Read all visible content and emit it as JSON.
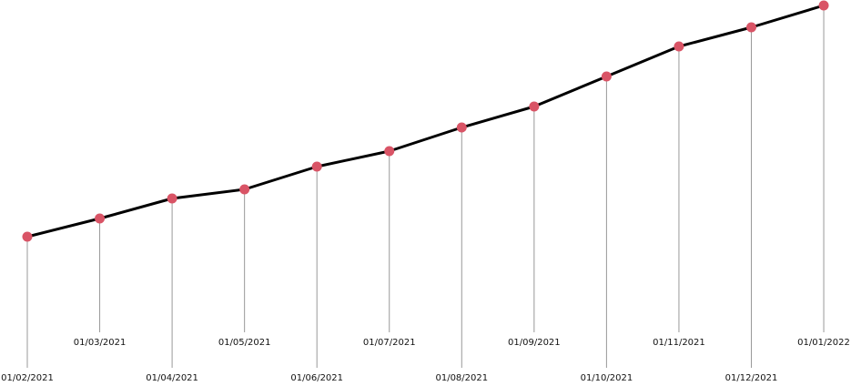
{
  "chart_data": {
    "type": "line",
    "categories": [
      "01/02/2021",
      "01/03/2021",
      "01/04/2021",
      "01/05/2021",
      "01/06/2021",
      "01/07/2021",
      "01/08/2021",
      "01/09/2021",
      "01/10/2021",
      "01/11/2021",
      "01/12/2021",
      "01/01/2022"
    ],
    "values": [
      164,
      184,
      206,
      216,
      241,
      258,
      284,
      307,
      340,
      373,
      394,
      418
    ],
    "ylim": [
      0,
      420
    ],
    "color": "#000000",
    "marker_color": "#d95466",
    "stem_color": "#999999"
  }
}
